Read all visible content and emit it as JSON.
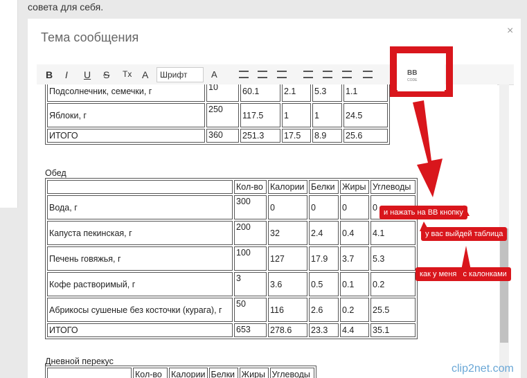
{
  "intro_text": "совета для себя.",
  "dialog": {
    "title": "Тема сообщения",
    "close": "×"
  },
  "toolbar": {
    "format_buttons": [
      "B",
      "I",
      "U",
      "S",
      "Tx",
      "A"
    ],
    "font": "Шрифт",
    "size": "A",
    "bbcode": [
      "BB",
      "CODE"
    ]
  },
  "tables": [
    {
      "caption": null,
      "header": null,
      "rows": [
        [
          "Подсолнечник, семечки, г",
          "10",
          "60.1",
          "2.1",
          "5.3",
          "1.1"
        ],
        [
          "Яблоки, г",
          "250",
          "117.5",
          "1",
          "1",
          "24.5"
        ],
        [
          "ИТОГО",
          "360",
          "251.3",
          "17.5",
          "8.9",
          "25.6"
        ]
      ]
    },
    {
      "caption": "Обед",
      "header": [
        "",
        "Кол-во",
        "Калории",
        "Белки",
        "Жиры",
        "Углеводы"
      ],
      "rows": [
        [
          "Вода, г",
          "300",
          "0",
          "0",
          "0",
          "0"
        ],
        [
          "Капуста пекинская, г",
          "200",
          "32",
          "2.4",
          "0.4",
          "4.1"
        ],
        [
          "Печень говяжья, г",
          "100",
          "127",
          "17.9",
          "3.7",
          "5.3"
        ],
        [
          "Кофе растворимый, г",
          "3",
          "3.6",
          "0.5",
          "0.1",
          "0.2"
        ],
        [
          "Абрикосы сушеные без косточки (курага), г",
          "50",
          "116",
          "2.6",
          "0.2",
          "25.5"
        ],
        [
          "ИТОГО",
          "653",
          "278.6",
          "23.3",
          "4.4",
          "35.1"
        ]
      ]
    },
    {
      "caption": "Дневной перекус",
      "header": [
        "",
        "Кол-во",
        "Калории",
        "Белки",
        "Жиры",
        "Углеводы"
      ],
      "rows": []
    }
  ],
  "annotations": [
    "и нажать на BB кнопку",
    "у вас выйдей таблица",
    "как у меня   с калонками"
  ],
  "watermark": "clip2net.com"
}
